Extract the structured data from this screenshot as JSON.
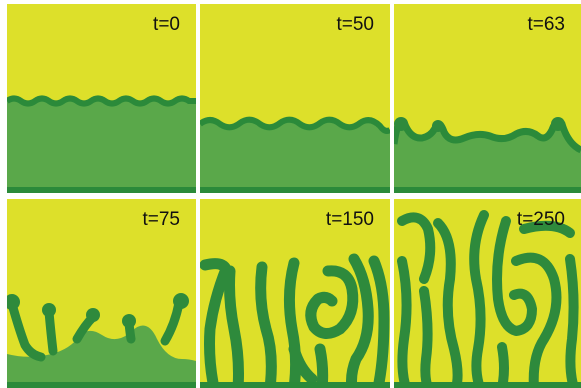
{
  "colors": {
    "background": "#dde02a",
    "finger": "#2e8a3c",
    "bulk": "#5aa84a",
    "rim": "#2b8a3a",
    "label": "#111111"
  },
  "panels": [
    {
      "time_label": "t=0"
    },
    {
      "time_label": "t=50"
    },
    {
      "time_label": "t=63"
    },
    {
      "time_label": "t=75"
    },
    {
      "time_label": "t=150"
    },
    {
      "time_label": "t=250"
    }
  ]
}
